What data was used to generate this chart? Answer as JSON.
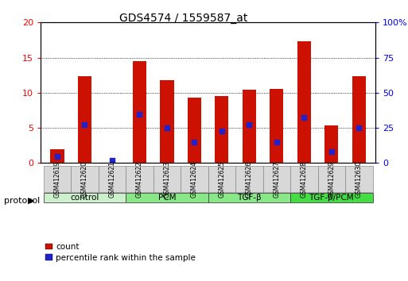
{
  "title": "GDS4574 / 1559587_at",
  "samples": [
    "GSM412619",
    "GSM412620",
    "GSM412621",
    "GSM412622",
    "GSM412623",
    "GSM412624",
    "GSM412625",
    "GSM412626",
    "GSM412627",
    "GSM412628",
    "GSM412629",
    "GSM412630"
  ],
  "counts": [
    2.0,
    12.4,
    0.0,
    14.5,
    11.8,
    9.3,
    9.5,
    10.4,
    10.5,
    17.3,
    5.3,
    12.4
  ],
  "percentile": [
    4.5,
    27.5,
    2.0,
    34.5,
    25.0,
    15.0,
    22.5,
    27.5,
    15.0,
    32.5,
    8.0,
    25.0
  ],
  "groups": [
    {
      "label": "control",
      "indices": [
        0,
        1,
        2
      ],
      "color": "#ccf0cc"
    },
    {
      "label": "PCM",
      "indices": [
        3,
        4,
        5
      ],
      "color": "#88e888"
    },
    {
      "label": "TGF-β",
      "indices": [
        6,
        7,
        8
      ],
      "color": "#88e888"
    },
    {
      "label": "TGF-β/PCM",
      "indices": [
        9,
        10,
        11
      ],
      "color": "#44dd44"
    }
  ],
  "bar_color": "#cc1100",
  "percentile_color": "#2222cc",
  "left_ylim": [
    0,
    20
  ],
  "right_ylim": [
    0,
    100
  ],
  "left_yticks": [
    0,
    5,
    10,
    15,
    20
  ],
  "right_yticks": [
    0,
    25,
    50,
    75,
    100
  ],
  "right_yticklabels": [
    "0",
    "25",
    "50",
    "75",
    "100%"
  ],
  "bar_width": 0.5,
  "figsize": [
    5.13,
    3.54
  ],
  "dpi": 100
}
